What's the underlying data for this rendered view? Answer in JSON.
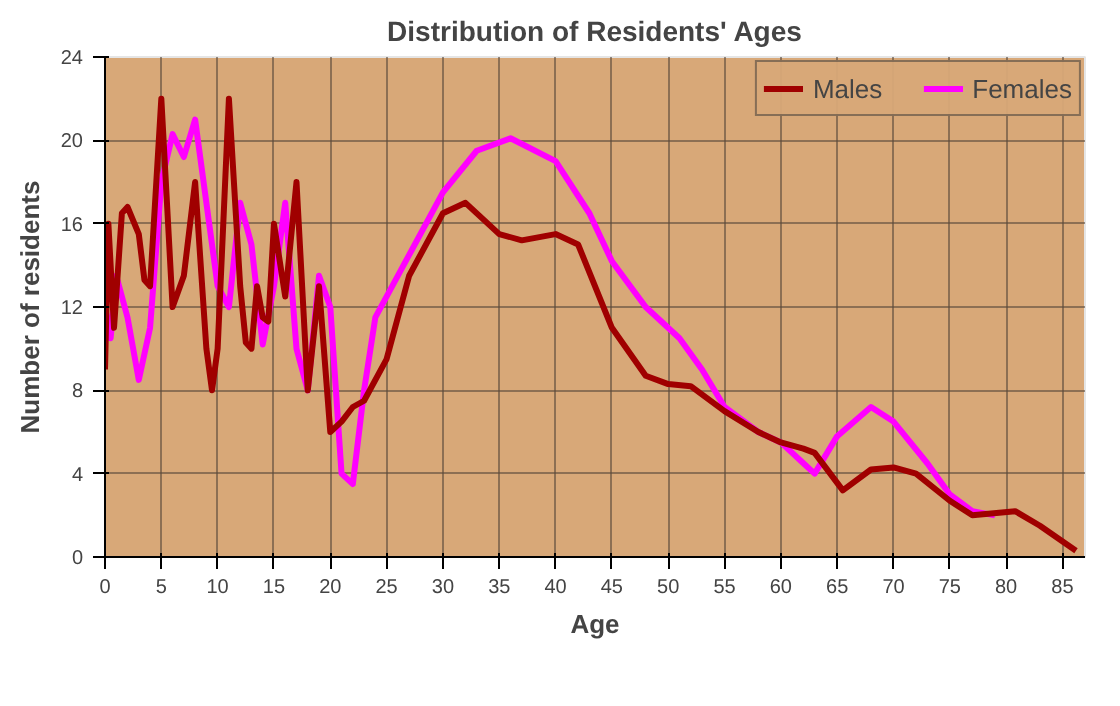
{
  "chart_data": {
    "type": "line",
    "title": "Distribution of Residents' Ages",
    "xlabel": "Age",
    "ylabel": "Number of residents",
    "xlim": [
      0,
      87
    ],
    "xticks": [
      0,
      5,
      10,
      15,
      20,
      25,
      30,
      35,
      40,
      45,
      50,
      55,
      60,
      65,
      70,
      75,
      80,
      85
    ],
    "ylim": [
      0,
      24
    ],
    "yticks": [
      0,
      4,
      8,
      12,
      16,
      20,
      24
    ],
    "grid": true,
    "legend": "top right",
    "marker": "none",
    "line_style": "solid",
    "series": [
      {
        "name": "Females",
        "color": "#ff00ff",
        "x": [
          0,
          0.5,
          1,
          2,
          3,
          4,
          5,
          6,
          7,
          8,
          9,
          10,
          11,
          12,
          13,
          14,
          15,
          16,
          17,
          18,
          19,
          20,
          21,
          22,
          23,
          24,
          27,
          30,
          33,
          36,
          40,
          43,
          45,
          48,
          51,
          53,
          55,
          58,
          60,
          62,
          63,
          65,
          68,
          70,
          73,
          75,
          77,
          79
        ],
        "values": [
          12,
          10.5,
          13.5,
          11.5,
          8.5,
          11,
          18,
          20.3,
          19.2,
          21,
          17,
          13,
          12,
          17,
          15,
          10.2,
          13,
          17,
          10,
          8,
          13.5,
          12,
          4,
          3.5,
          8,
          11.5,
          14.5,
          17.5,
          19.5,
          20.1,
          19,
          16.5,
          14.2,
          12,
          10.5,
          9,
          7.2,
          6,
          5.5,
          4.5,
          4,
          5.8,
          7.2,
          6.5,
          4.5,
          3,
          2.2,
          2
        ]
      },
      {
        "name": "Males",
        "color": "#a00000",
        "x": [
          0,
          0.3,
          0.8,
          1.5,
          2,
          3,
          3.5,
          4,
          5,
          6,
          7,
          8,
          9,
          9.5,
          10,
          11,
          12,
          12.5,
          13,
          13.5,
          14,
          14.5,
          15,
          16,
          17,
          18,
          19,
          20,
          21,
          22,
          23,
          25,
          27,
          30,
          32,
          35,
          37,
          40,
          42,
          45,
          48,
          50,
          52,
          55,
          58,
          60,
          62,
          63,
          65.5,
          68,
          70,
          72,
          75,
          77,
          80.8,
          83,
          86.2
        ],
        "values": [
          9,
          16,
          11,
          16.5,
          16.8,
          15.5,
          13.3,
          13,
          22,
          12,
          13.5,
          18,
          10,
          8,
          10,
          22,
          13,
          10.3,
          10,
          13,
          11.5,
          11.3,
          16,
          12.5,
          18,
          8,
          13,
          6,
          6.5,
          7.2,
          7.5,
          9.5,
          13.5,
          16.5,
          17,
          15.5,
          15.2,
          15.5,
          15,
          11,
          8.7,
          8.3,
          8.2,
          7,
          6,
          5.5,
          5.2,
          5,
          3.2,
          4.2,
          4.3,
          4,
          2.7,
          2,
          2.2,
          1.5,
          0.3
        ]
      }
    ]
  }
}
